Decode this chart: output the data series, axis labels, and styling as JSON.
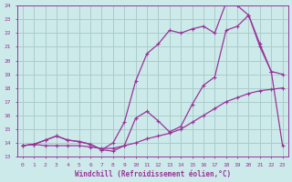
{
  "title": "",
  "xlabel": "Windchill (Refroidissement éolien,°C)",
  "ylabel": "",
  "bg_color": "#cdeaea",
  "line_color": "#993399",
  "grid_color": "#aacccc",
  "xlim": [
    -0.5,
    23.5
  ],
  "ylim": [
    13,
    24
  ],
  "xticks": [
    0,
    1,
    2,
    3,
    4,
    5,
    6,
    7,
    8,
    9,
    10,
    11,
    12,
    13,
    14,
    15,
    16,
    17,
    18,
    19,
    20,
    21,
    22,
    23
  ],
  "yticks": [
    13,
    14,
    15,
    16,
    17,
    18,
    19,
    20,
    21,
    22,
    23,
    24
  ],
  "curve1_x": [
    0,
    1,
    2,
    3,
    4,
    5,
    6,
    7,
    8,
    9,
    10,
    11,
    12,
    13,
    14,
    15,
    16,
    17,
    18,
    19,
    20,
    21,
    22,
    23
  ],
  "curve1_y": [
    13.8,
    13.9,
    13.8,
    13.8,
    13.8,
    13.8,
    13.7,
    13.6,
    13.6,
    13.8,
    14.0,
    14.3,
    14.5,
    14.7,
    15.0,
    15.5,
    16.0,
    16.5,
    17.0,
    17.3,
    17.6,
    17.8,
    17.9,
    18.0
  ],
  "curve2_x": [
    0,
    1,
    2,
    3,
    4,
    5,
    6,
    7,
    8,
    9,
    10,
    11,
    12,
    13,
    14,
    15,
    16,
    17,
    18,
    19,
    20,
    21,
    22,
    23
  ],
  "curve2_y": [
    13.8,
    13.9,
    14.2,
    14.5,
    14.2,
    14.1,
    13.9,
    13.5,
    13.4,
    13.8,
    15.8,
    16.3,
    15.6,
    14.8,
    15.2,
    16.8,
    18.2,
    18.8,
    22.2,
    22.5,
    23.3,
    21.0,
    19.2,
    13.8
  ],
  "curve3_x": [
    0,
    1,
    2,
    3,
    4,
    5,
    6,
    7,
    8,
    9,
    10,
    11,
    12,
    13,
    14,
    15,
    16,
    17,
    18,
    19,
    20,
    21,
    22,
    23
  ],
  "curve3_y": [
    13.8,
    13.9,
    14.2,
    14.5,
    14.2,
    14.1,
    13.9,
    13.5,
    14.0,
    15.5,
    18.5,
    20.5,
    21.2,
    22.2,
    22.0,
    22.3,
    22.5,
    22.0,
    24.2,
    24.0,
    23.3,
    21.2,
    19.2,
    19.0
  ]
}
